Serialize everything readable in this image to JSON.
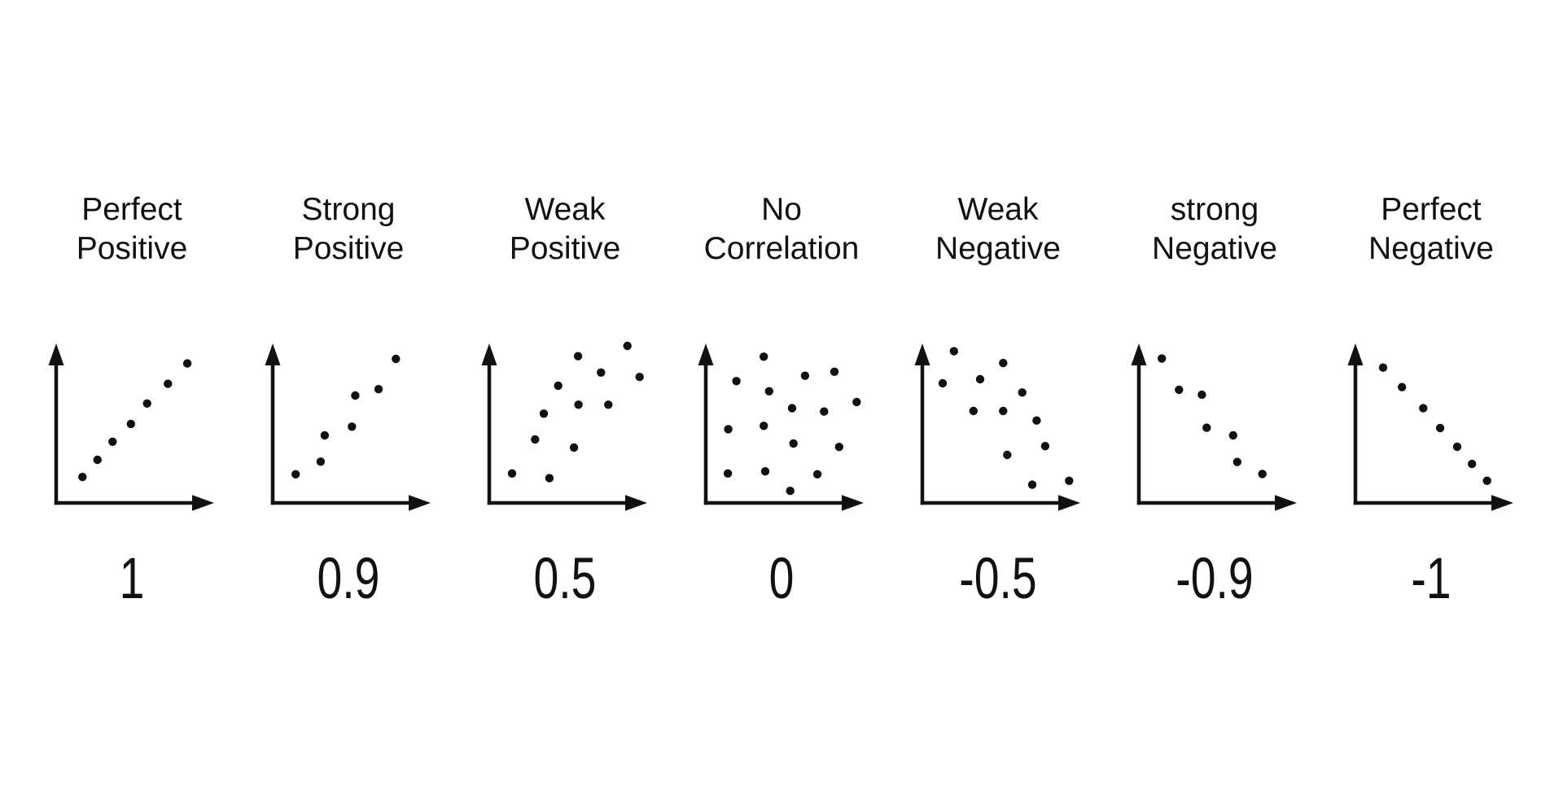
{
  "colors": {
    "background": "#ffffff",
    "ink": "#111111"
  },
  "chart_data": [
    {
      "type": "scatter",
      "label_line1": "Perfect",
      "label_line2": "Positive",
      "value": "1",
      "x_range": [
        0,
        100
      ],
      "y_range": [
        0,
        100
      ],
      "axes": {
        "style": "bare arrows, no ticks, no labels"
      },
      "points": [
        [
          16.8,
          17.4
        ],
        [
          26.4,
          28.2
        ],
        [
          36.1,
          39.6
        ],
        [
          47.8,
          50.8
        ],
        [
          58.2,
          63.7
        ],
        [
          71.5,
          76.1
        ],
        [
          83.9,
          88.9
        ]
      ]
    },
    {
      "type": "scatter",
      "label_line1": "Strong",
      "label_line2": "Positive",
      "value": "0.9",
      "x_range": [
        0,
        100
      ],
      "y_range": [
        0,
        100
      ],
      "axes": {
        "style": "bare arrows, no ticks, no labels"
      },
      "points": [
        [
          14.7,
          19.1
        ],
        [
          30.7,
          27.0
        ],
        [
          33.3,
          43.6
        ],
        [
          50.7,
          49.1
        ],
        [
          52.8,
          68.7
        ],
        [
          67.7,
          72.7
        ],
        [
          78.8,
          91.8
        ]
      ]
    },
    {
      "type": "scatter",
      "label_line1": "Weak",
      "label_line2": "Positive",
      "value": "0.5",
      "x_range": [
        0,
        100
      ],
      "y_range": [
        0,
        100
      ],
      "axes": {
        "style": "bare arrows, no ticks, no labels"
      },
      "points": [
        [
          88.4,
          100
        ],
        [
          56.8,
          93.5
        ],
        [
          71.5,
          83.2
        ],
        [
          96.2,
          80.4
        ],
        [
          44.1,
          74.9
        ],
        [
          57.1,
          62.9
        ],
        [
          76.2,
          62.9
        ],
        [
          34.9,
          57.3
        ],
        [
          29.3,
          41.0
        ],
        [
          54.2,
          35.9
        ],
        [
          14.6,
          19.6
        ],
        [
          38.5,
          16.6
        ]
      ]
    },
    {
      "type": "scatter",
      "label_line1": "No",
      "label_line2": "Correlation",
      "value": "0",
      "x_range": [
        0,
        100
      ],
      "y_range": [
        0,
        100
      ],
      "axes": {
        "style": "bare arrows, no ticks, no labels"
      },
      "points": [
        [
          37.1,
          93.2
        ],
        [
          82.3,
          83.7
        ],
        [
          63.5,
          81.2
        ],
        [
          19.6,
          77.8
        ],
        [
          40.5,
          71.4
        ],
        [
          96.5,
          64.6
        ],
        [
          55.2,
          60.7
        ],
        [
          75.7,
          58.6
        ],
        [
          37.1,
          49.6
        ],
        [
          14.4,
          47.5
        ],
        [
          56.1,
          38.5
        ],
        [
          85.3,
          36.3
        ],
        [
          38.0,
          20.9
        ],
        [
          14.1,
          19.6
        ],
        [
          71.4,
          19.1
        ],
        [
          54.0,
          8.6
        ]
      ]
    },
    {
      "type": "scatter",
      "label_line1": "Weak",
      "label_line2": "Negative",
      "value": "-0.5",
      "x_range": [
        0,
        100
      ],
      "y_range": [
        0,
        100
      ],
      "axes": {
        "style": "bare arrows, no ticks, no labels"
      },
      "points": [
        [
          20.2,
          96.6
        ],
        [
          51.7,
          89.2
        ],
        [
          37.0,
          79.0
        ],
        [
          13.0,
          76.4
        ],
        [
          63.9,
          70.6
        ],
        [
          32.7,
          59.0
        ],
        [
          51.7,
          59.0
        ],
        [
          73.1,
          53.0
        ],
        [
          78.6,
          36.8
        ],
        [
          54.3,
          31.3
        ],
        [
          70.3,
          12.5
        ],
        [
          93.9,
          15.0
        ]
      ]
    },
    {
      "type": "scatter",
      "label_line1": "strong",
      "label_line2": "Negative",
      "value": "-0.9",
      "x_range": [
        0,
        100
      ],
      "y_range": [
        0,
        100
      ],
      "axes": {
        "style": "bare arrows, no ticks, no labels"
      },
      "points": [
        [
          14.7,
          92.0
        ],
        [
          25.7,
          72.3
        ],
        [
          40.3,
          69.2
        ],
        [
          43.4,
          48.4
        ],
        [
          60.3,
          43.6
        ],
        [
          62.9,
          26.8
        ],
        [
          79.0,
          19.3
        ]
      ]
    },
    {
      "type": "scatter",
      "label_line1": "Perfect",
      "label_line2": "Negative",
      "value": "-1",
      "x_range": [
        0,
        100
      ],
      "y_range": [
        0,
        100
      ],
      "axes": {
        "style": "bare arrows, no ticks, no labels"
      },
      "points": [
        [
          17.7,
          86.3
        ],
        [
          29.8,
          74.0
        ],
        [
          43.4,
          60.7
        ],
        [
          54.2,
          48.2
        ],
        [
          65.1,
          36.4
        ],
        [
          74.6,
          25.6
        ],
        [
          84.2,
          15.0
        ]
      ]
    }
  ]
}
